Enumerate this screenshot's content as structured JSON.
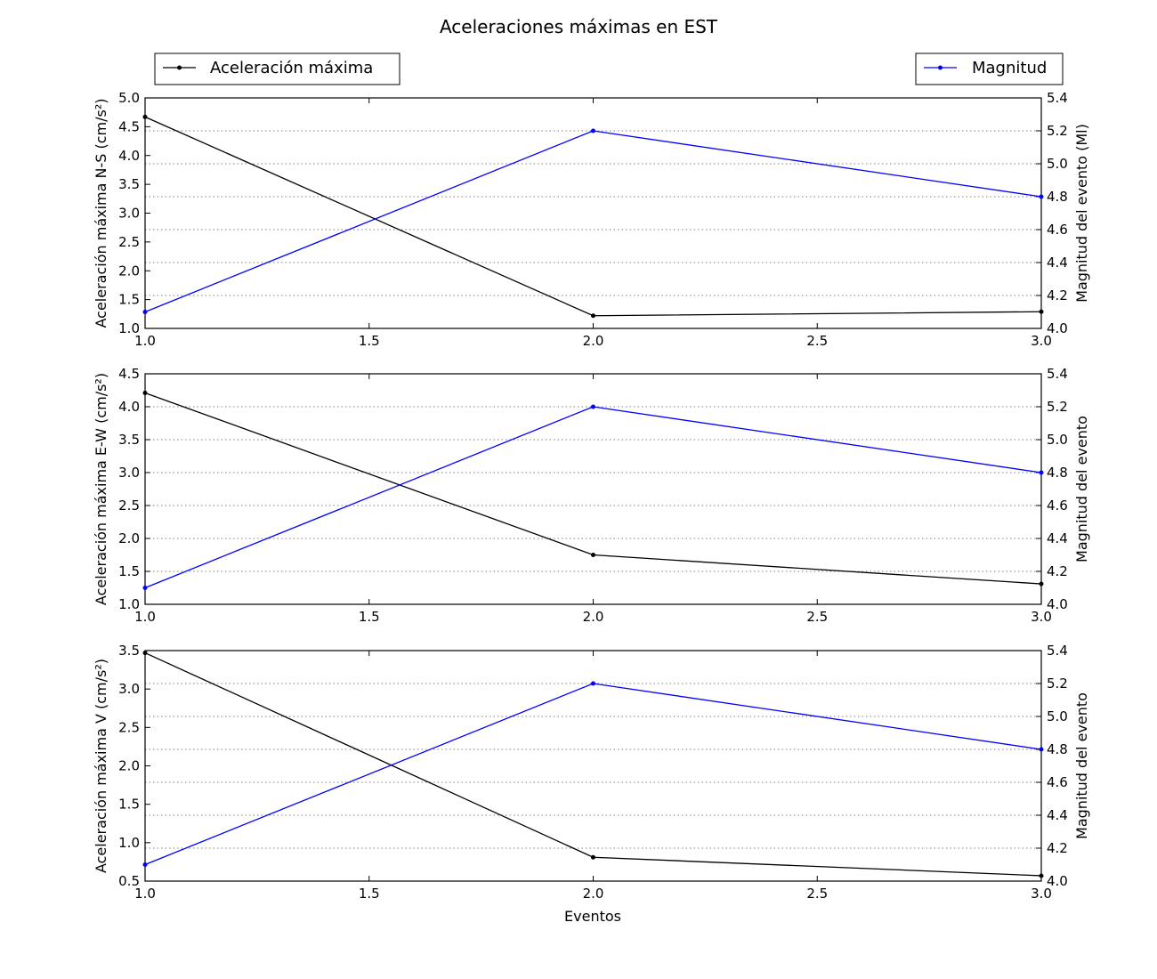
{
  "figure": {
    "title": "Aceleraciones máximas en EST",
    "legend_left": "Aceleración máxima",
    "legend_right": "Magnitud",
    "xlabel": "Eventos"
  },
  "colors": {
    "acceleration": "#000000",
    "magnitude": "#0000ff",
    "grid": "#555555"
  },
  "chart_data": [
    {
      "type": "line",
      "x": [
        1.0,
        2.0,
        3.0
      ],
      "xlim": [
        1.0,
        3.0
      ],
      "xticks": [
        "1.0",
        "1.5",
        "2.0",
        "2.5",
        "3.0"
      ],
      "ylabel": "Aceleración máxima N-S (cm/s²)",
      "ylim": [
        1.0,
        5.0
      ],
      "yticks": [
        "1.0",
        "1.5",
        "2.0",
        "2.5",
        "3.0",
        "3.5",
        "4.0",
        "4.5",
        "5.0"
      ],
      "y2label": "Magnitud del evento (Ml)",
      "y2lim": [
        4.0,
        5.4
      ],
      "y2ticks": [
        "4.0",
        "4.2",
        "4.4",
        "4.6",
        "4.8",
        "5.0",
        "5.2",
        "5.4"
      ],
      "grid": true,
      "series": [
        {
          "name": "Aceleración máxima",
          "axis": "left",
          "values": [
            4.67,
            1.22,
            1.29
          ]
        },
        {
          "name": "Magnitud",
          "axis": "right",
          "values": [
            4.1,
            5.2,
            4.8
          ]
        }
      ]
    },
    {
      "type": "line",
      "x": [
        1.0,
        2.0,
        3.0
      ],
      "xlim": [
        1.0,
        3.0
      ],
      "xticks": [
        "1.0",
        "1.5",
        "2.0",
        "2.5",
        "3.0"
      ],
      "ylabel": "Aceleración máxima E-W (cm/s²)",
      "ylim": [
        1.0,
        4.5
      ],
      "yticks": [
        "1.0",
        "1.5",
        "2.0",
        "2.5",
        "3.0",
        "3.5",
        "4.0",
        "4.5"
      ],
      "y2label": "Magnitud del evento",
      "y2lim": [
        4.0,
        5.4
      ],
      "y2ticks": [
        "4.0",
        "4.2",
        "4.4",
        "4.6",
        "4.8",
        "5.0",
        "5.2",
        "5.4"
      ],
      "grid": true,
      "series": [
        {
          "name": "Aceleración máxima",
          "axis": "left",
          "values": [
            4.21,
            1.75,
            1.31
          ]
        },
        {
          "name": "Magnitud",
          "axis": "right",
          "values": [
            4.1,
            5.2,
            4.8
          ]
        }
      ]
    },
    {
      "type": "line",
      "x": [
        1.0,
        2.0,
        3.0
      ],
      "xlim": [
        1.0,
        3.0
      ],
      "xticks": [
        "1.0",
        "1.5",
        "2.0",
        "2.5",
        "3.0"
      ],
      "ylabel": "Aceleración máxima V (cm/s²)",
      "ylim": [
        0.5,
        3.5
      ],
      "yticks": [
        "0.5",
        "1.0",
        "1.5",
        "2.0",
        "2.5",
        "3.0",
        "3.5"
      ],
      "y2label": "Magnitud del evento",
      "y2lim": [
        4.0,
        5.4
      ],
      "y2ticks": [
        "4.0",
        "4.2",
        "4.4",
        "4.6",
        "4.8",
        "5.0",
        "5.2",
        "5.4"
      ],
      "grid": true,
      "series": [
        {
          "name": "Aceleración máxima",
          "axis": "left",
          "values": [
            3.47,
            0.81,
            0.57
          ]
        },
        {
          "name": "Magnitud",
          "axis": "right",
          "values": [
            4.1,
            5.2,
            4.8
          ]
        }
      ]
    }
  ]
}
